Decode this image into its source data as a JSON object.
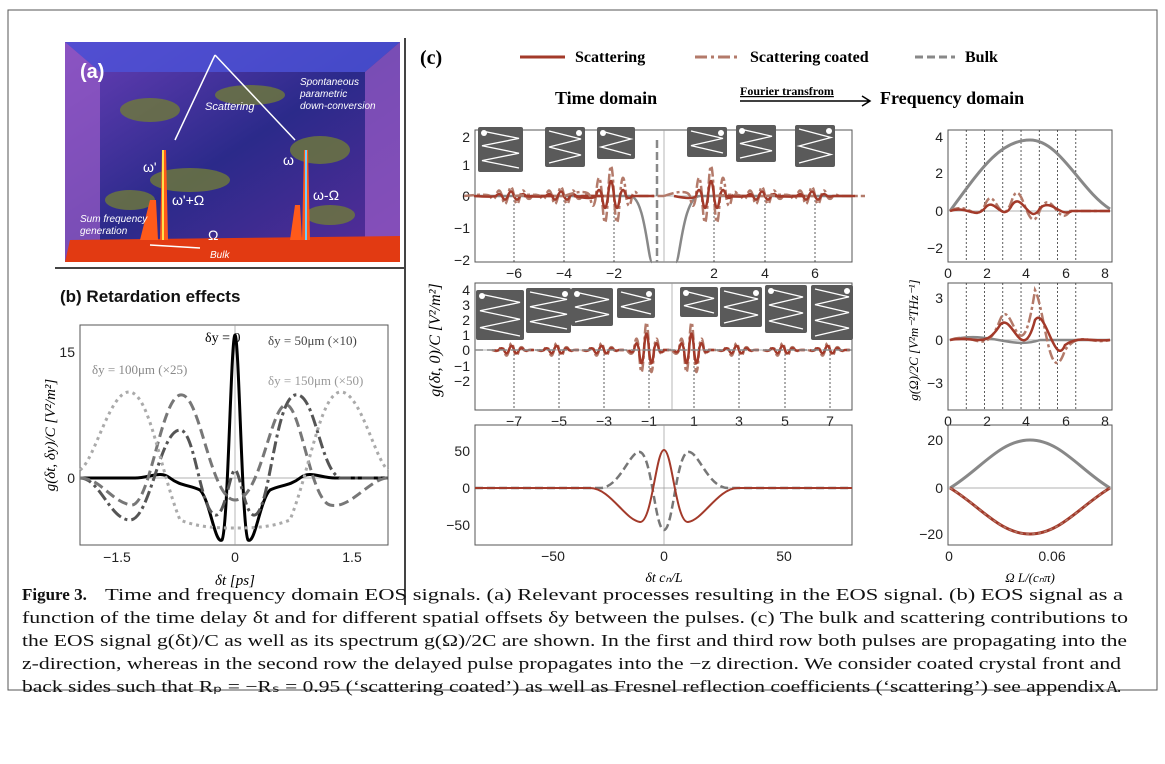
{
  "panel_a": {
    "label": "(a)",
    "scattering": "Scattering",
    "spdc_1": "Spontaneous",
    "spdc_2": "parametric",
    "spdc_3": "down-conversion",
    "omega_prime": "ω'",
    "omega": "ω",
    "omega_prime_plus": "ω'+Ω",
    "omega_minus": "ω-Ω",
    "sfg_1": "Sum frequency",
    "sfg_2": "generation",
    "Omega": "Ω",
    "bulk": "Bulk"
  },
  "panel_b": {
    "title": "(b) Retardation effects",
    "y_label": "g(δt, δy)/C  [V²/m²]",
    "x_label": "δt  [ps]",
    "xticks": [
      "−1.5",
      "0",
      "1.5"
    ],
    "yticks": [
      "15",
      "0"
    ],
    "annotations": [
      "δy = 0",
      "δy = 50μm (×10)",
      "δy = 100μm (×25)",
      "δy = 150μm (×50)"
    ]
  },
  "panel_c": {
    "label": "(c)",
    "legend": [
      "Scattering",
      "Scattering coated",
      "Bulk"
    ],
    "time_domain": "Time domain",
    "arrow_label": "Fourier transfrom",
    "frequency_domain": "Frequency domain",
    "time_y_label": "g(δt, 0)/C   [V²/m²]",
    "time_x_label": "δt cₙ/L",
    "freq_y_label": "g(Ω)/2C   [V²m⁻²THz⁻¹]",
    "freq_x_label": "Ω L/(cₙπ)",
    "time_plots": [
      {
        "xticks": [
          "−6",
          "−4",
          "−2",
          "2",
          "4",
          "6"
        ],
        "yticks": [
          "2",
          "1",
          "0",
          "−1",
          "−2"
        ]
      },
      {
        "xticks": [
          "−7",
          "−5",
          "−3",
          "−1",
          "1",
          "3",
          "5",
          "7"
        ],
        "yticks": [
          "4",
          "3",
          "2",
          "1",
          "0",
          "−1",
          "−2"
        ]
      },
      {
        "xticks": [
          "−50",
          "0",
          "50"
        ],
        "yticks": [
          "50",
          "0",
          "−50"
        ]
      }
    ],
    "freq_plots": [
      {
        "xticks": [
          "0",
          "2",
          "4",
          "6",
          "8"
        ],
        "yticks": [
          "4",
          "2",
          "0",
          "−2"
        ]
      },
      {
        "xticks": [
          "0",
          "2",
          "4",
          "6",
          "8"
        ],
        "yticks": [
          "3",
          "0",
          "−3"
        ]
      },
      {
        "xticks": [
          "0",
          "0.06"
        ],
        "yticks": [
          "20",
          "0",
          "−20"
        ]
      }
    ]
  },
  "caption": {
    "label": "Figure 3.",
    "lines": [
      "Time and frequency domain EOS signals. (a) Relevant processes resulting in the EOS signal. (b) EOS signal as a",
      "function of the time delay δt and for different spatial offsets δy between the pulses. (c) The bulk and scattering contributions to",
      "the EOS signal g(δt)/C as well as its spectrum g(Ω)/2C are shown. In the first and third row both pulses are propagating into the",
      "z-direction, whereas in the second row the delayed pulse propagates into the −z direction. We consider coated crystal front and",
      "back sides such that Rₚ = −Rₛ = 0.95 (‘scattering coated’) as well as Fresnel reflection coefficients (‘scattering’) see appendix "
    ],
    "link": "A",
    "end": "."
  }
}
